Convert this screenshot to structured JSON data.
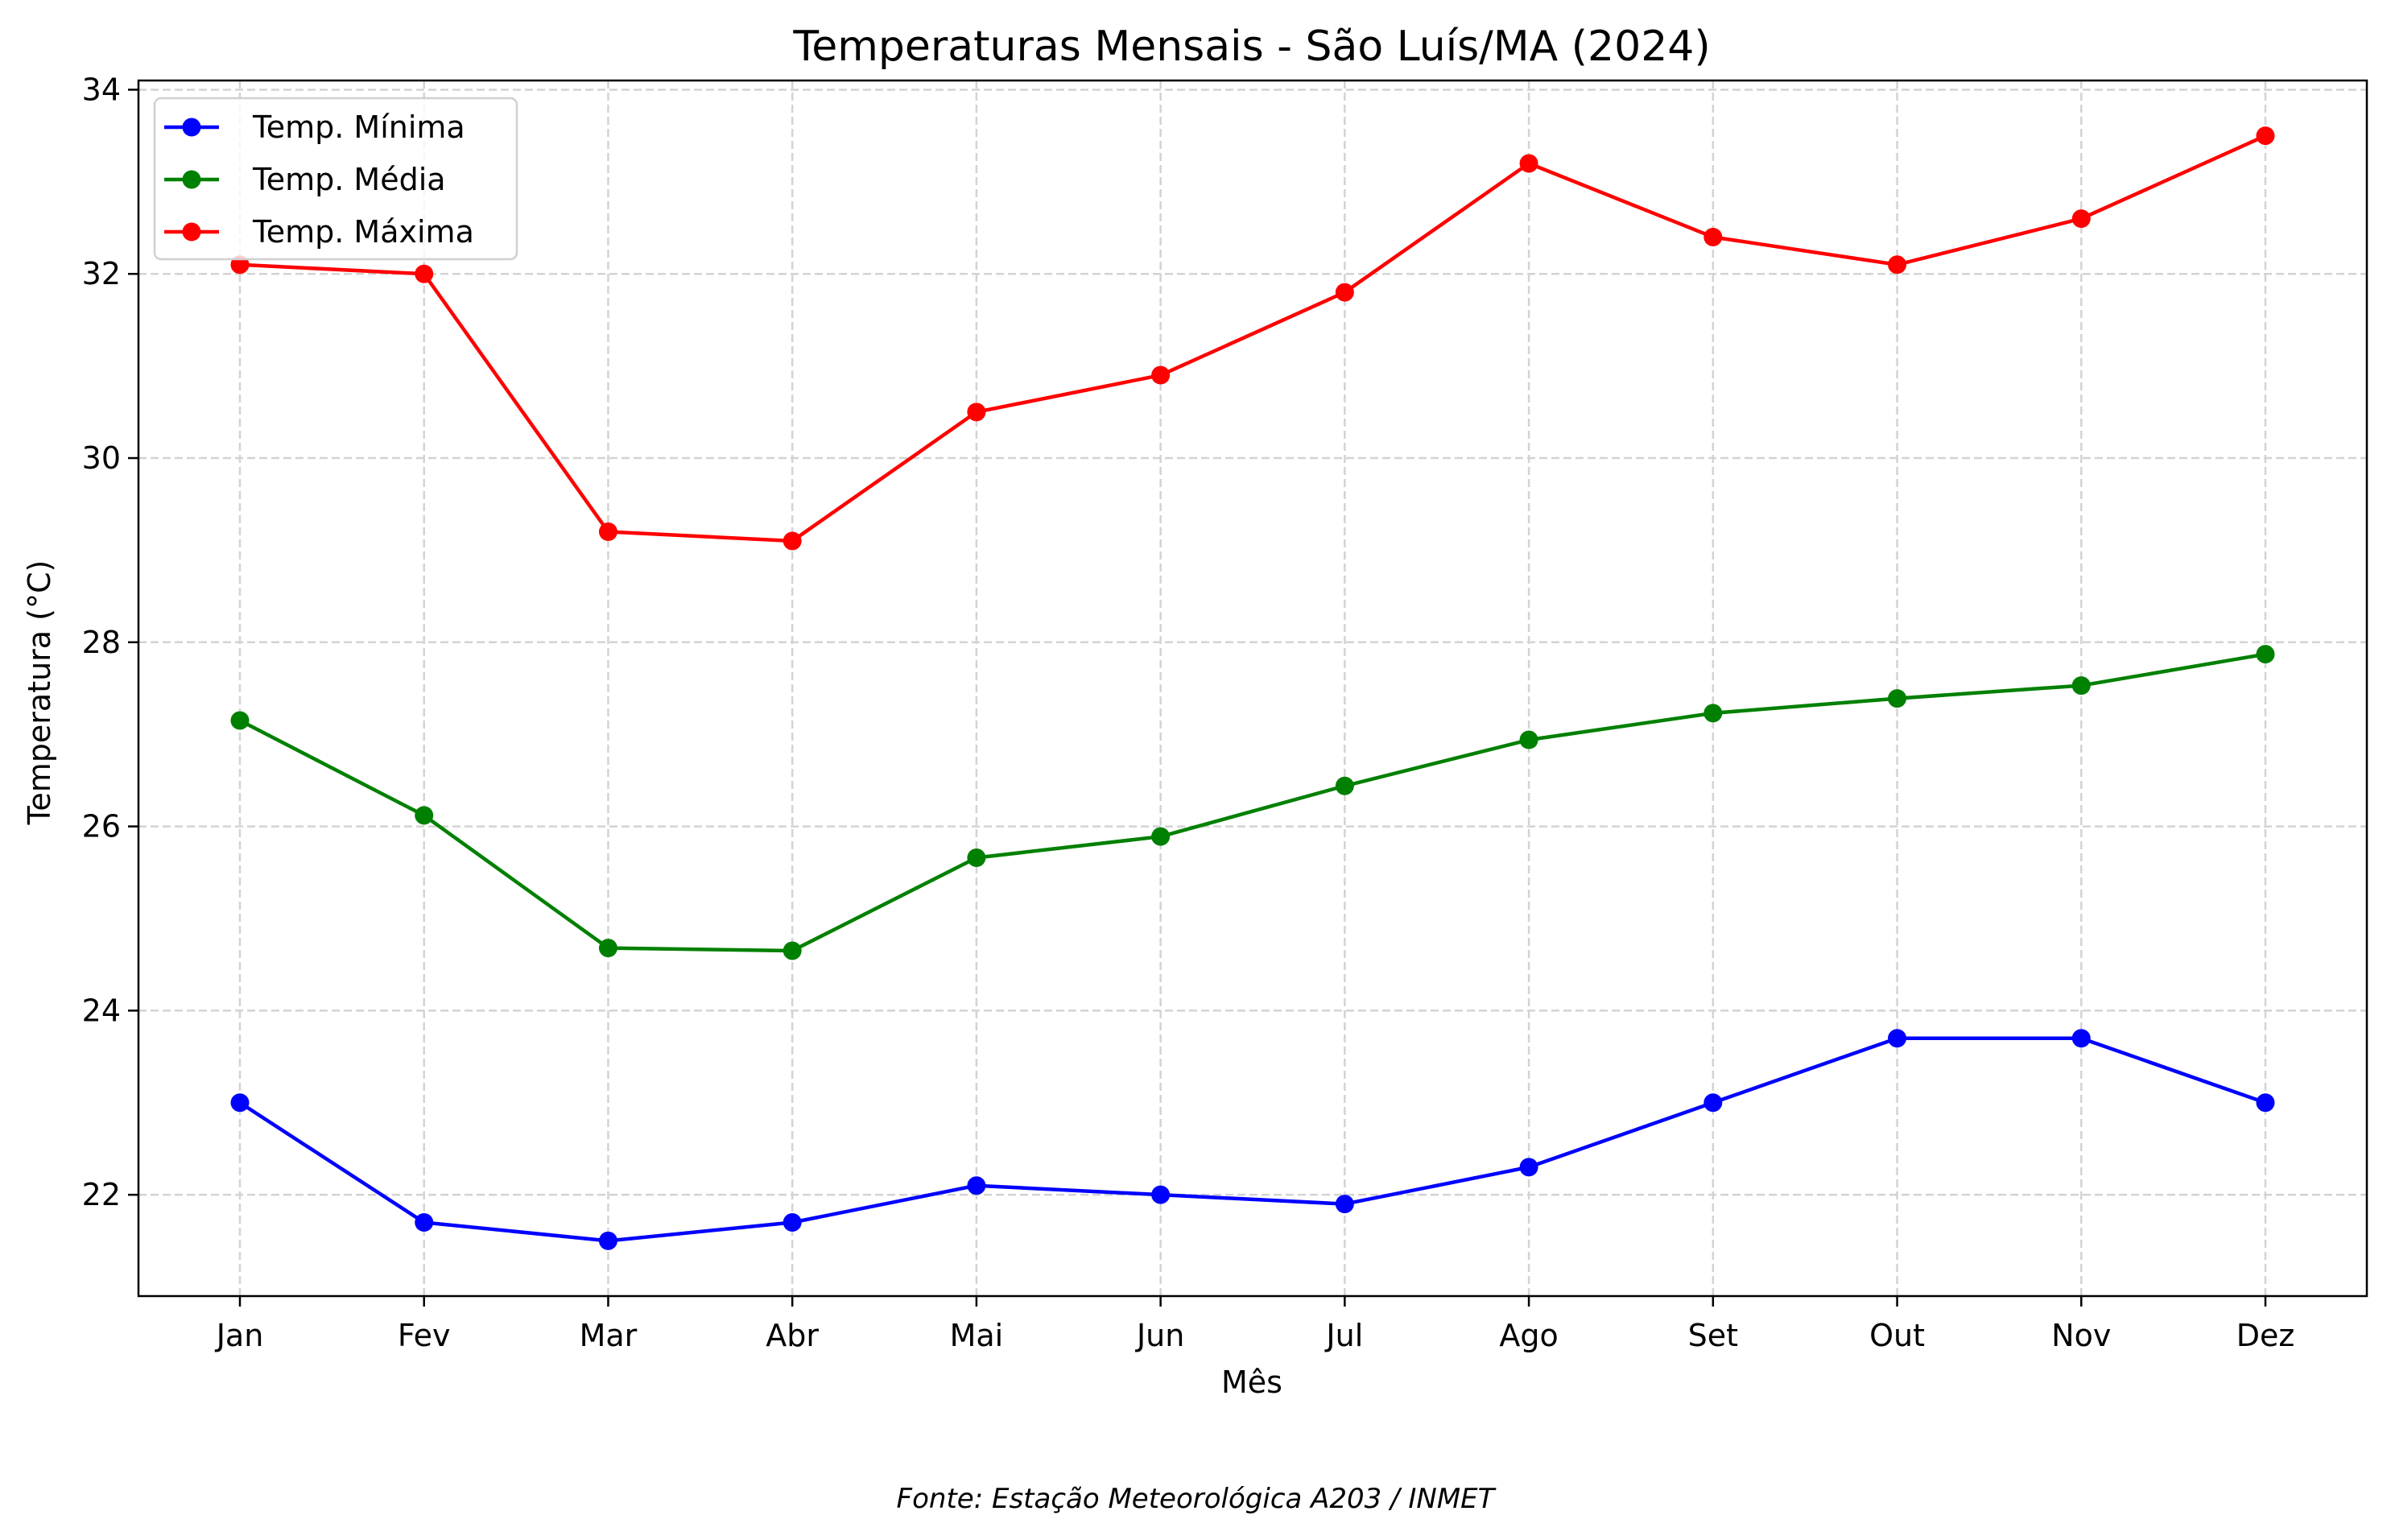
{
  "chart_data": {
    "type": "line",
    "title": "Temperaturas Mensais - São Luís/MA (2024)",
    "xlabel": "Mês",
    "ylabel": "Temperatura (°C)",
    "categories": [
      "Jan",
      "Fev",
      "Mar",
      "Abr",
      "Mai",
      "Jun",
      "Jul",
      "Ago",
      "Set",
      "Out",
      "Nov",
      "Dez"
    ],
    "ylim": [
      20.9,
      34.1
    ],
    "yticks": [
      22,
      24,
      26,
      28,
      30,
      32,
      34
    ],
    "ytick_labels": [
      "22",
      "24",
      "26",
      "28",
      "30",
      "32",
      "34"
    ],
    "grid": true,
    "legend_position": "top-left",
    "series": [
      {
        "name": "Temp. Mínima",
        "color": "#0000ff",
        "values": [
          23.0,
          21.7,
          21.5,
          21.7,
          22.1,
          22.0,
          21.9,
          22.3,
          23.0,
          23.7,
          23.7,
          23.0
        ]
      },
      {
        "name": "Temp. Média",
        "color": "#008000",
        "values": [
          27.15,
          26.12,
          24.68,
          24.65,
          25.66,
          25.89,
          26.44,
          26.94,
          27.23,
          27.39,
          27.53,
          27.87
        ]
      },
      {
        "name": "Temp. Máxima",
        "color": "#ff0000",
        "values": [
          32.1,
          32.0,
          29.2,
          29.1,
          30.5,
          30.9,
          31.8,
          33.2,
          32.4,
          32.1,
          32.6,
          33.5
        ]
      }
    ],
    "source_note": "Fonte: Estação Meteorológica A203 / INMET"
  }
}
